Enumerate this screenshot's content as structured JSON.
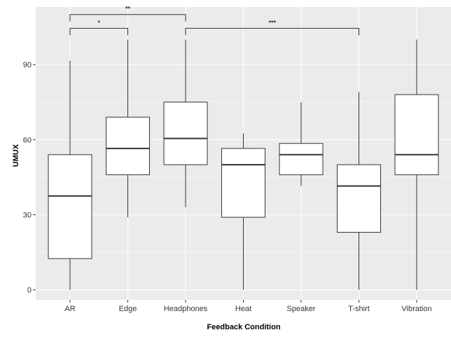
{
  "chart_data": {
    "type": "box",
    "title": "",
    "xlabel": "Feedback Condition",
    "ylabel": "UMUX",
    "ylim": [
      -4,
      113
    ],
    "yticks": [
      0,
      30,
      60,
      90
    ],
    "ytick_labels": [
      "0",
      "30",
      "60",
      "90"
    ],
    "grid": true,
    "categories": [
      "AR",
      "Edge",
      "Headphones",
      "Heat",
      "Speaker",
      "T-shirt",
      "Vibration"
    ],
    "boxes": [
      {
        "category": "AR",
        "min": 0,
        "q1": 12.5,
        "median": 37.5,
        "q3": 54,
        "max": 91.5
      },
      {
        "category": "Edge",
        "min": 29,
        "q1": 46,
        "median": 56.5,
        "q3": 69,
        "max": 100
      },
      {
        "category": "Headphones",
        "min": 33,
        "q1": 50,
        "median": 60.5,
        "q3": 75,
        "max": 100
      },
      {
        "category": "Heat",
        "min": 0,
        "q1": 29,
        "median": 50,
        "q3": 56.5,
        "max": 62.5
      },
      {
        "category": "Speaker",
        "min": 41.5,
        "q1": 46,
        "median": 54,
        "q3": 58.5,
        "max": 75
      },
      {
        "category": "T-shirt",
        "min": 0,
        "q1": 23,
        "median": 41.5,
        "q3": 50,
        "max": 79
      },
      {
        "category": "Vibration",
        "min": 0,
        "q1": 46,
        "median": 54,
        "q3": 78,
        "max": 100
      }
    ],
    "significance": [
      {
        "from": "AR",
        "to": "Headphones",
        "y": 110,
        "label": "**"
      },
      {
        "from": "AR",
        "to": "Edge",
        "y": 104.5,
        "label": "*"
      },
      {
        "from": "Headphones",
        "to": "T-shirt",
        "y": 104.5,
        "label": "***"
      }
    ]
  },
  "colors": {
    "panel_background": "#ebebeb",
    "grid_major": "#ffffff",
    "box_fill": "#ffffff",
    "box_stroke": "#333333"
  }
}
